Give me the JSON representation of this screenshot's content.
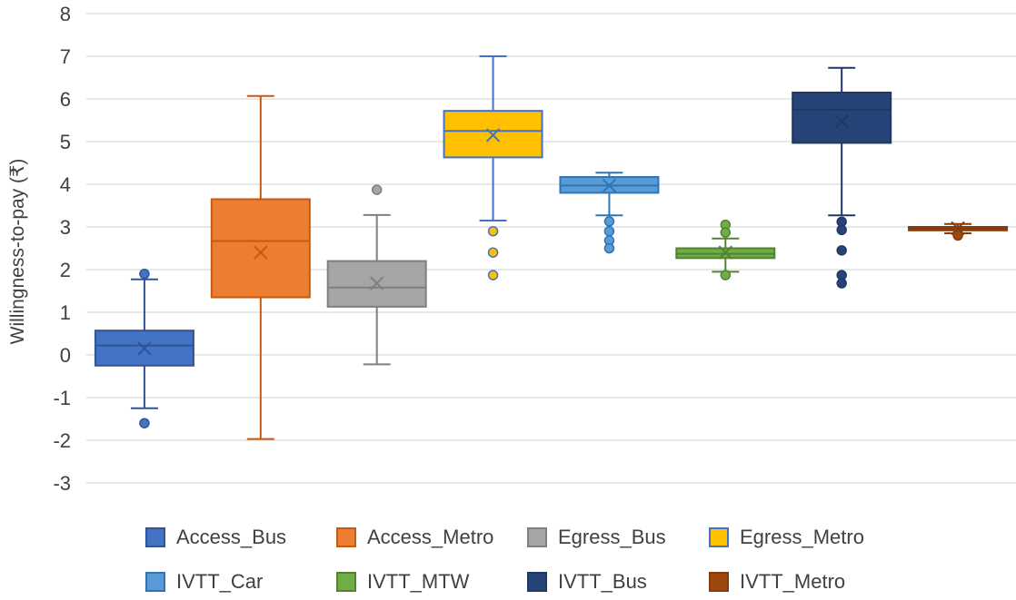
{
  "chart_data": {
    "type": "boxplot",
    "title": "",
    "xlabel": "",
    "ylabel": "Willingness-to-pay (₹)",
    "ylim": [
      -3,
      8
    ],
    "yticks": [
      -3,
      -2,
      -1,
      0,
      1,
      2,
      3,
      4,
      5,
      6,
      7,
      8
    ],
    "grid": true,
    "legend_position": "bottom",
    "series": [
      {
        "name": "Access_Bus",
        "color": "#4472C4",
        "border": "#2F5597",
        "whisker_low": -1.25,
        "q1": -0.25,
        "median": 0.22,
        "q3": 0.57,
        "whisker_high": 1.77,
        "mean": 0.15,
        "outliers": [
          1.9,
          -1.6
        ]
      },
      {
        "name": "Access_Metro",
        "color": "#ED7D31",
        "border": "#C55A11",
        "whisker_low": -1.97,
        "q1": 1.35,
        "median": 2.67,
        "q3": 3.65,
        "whisker_high": 6.07,
        "mean": 2.4,
        "outliers": []
      },
      {
        "name": "Egress_Bus",
        "color": "#A5A5A5",
        "border": "#7F7F7F",
        "whisker_low": -0.22,
        "q1": 1.13,
        "median": 1.58,
        "q3": 2.2,
        "whisker_high": 3.28,
        "mean": 1.68,
        "outliers": [
          3.87
        ]
      },
      {
        "name": "Egress_Metro",
        "color": "#FFC000",
        "border": "#4472C4",
        "whisker_low": 3.15,
        "q1": 4.63,
        "median": 5.25,
        "q3": 5.72,
        "whisker_high": 7.0,
        "mean": 5.15,
        "outliers": [
          2.9,
          2.4,
          1.87
        ]
      },
      {
        "name": "IVTT_Car",
        "color": "#5B9BD5",
        "border": "#2E75B6",
        "whisker_low": 3.27,
        "q1": 3.8,
        "median": 3.97,
        "q3": 4.17,
        "whisker_high": 4.27,
        "mean": 3.97,
        "outliers": [
          3.13,
          2.9,
          2.68,
          2.5
        ]
      },
      {
        "name": "IVTT_MTW",
        "color": "#70AD47",
        "border": "#548235",
        "whisker_low": 1.95,
        "q1": 2.27,
        "median": 2.37,
        "q3": 2.5,
        "whisker_high": 2.73,
        "mean": 2.4,
        "outliers": [
          3.05,
          2.87,
          1.87
        ]
      },
      {
        "name": "IVTT_Bus",
        "color": "#264478",
        "border": "#1F3864",
        "whisker_low": 3.27,
        "q1": 4.97,
        "median": 5.75,
        "q3": 6.15,
        "whisker_high": 6.73,
        "mean": 5.47,
        "outliers": [
          3.12,
          2.93,
          2.45,
          1.87,
          1.68
        ]
      },
      {
        "name": "IVTT_Metro",
        "color": "#9E480E",
        "border": "#843C0C",
        "whisker_low": 2.85,
        "q1": 2.92,
        "median": 2.97,
        "q3": 3.0,
        "whisker_high": 3.07,
        "mean": 2.97,
        "outliers": [
          2.8
        ]
      }
    ]
  }
}
